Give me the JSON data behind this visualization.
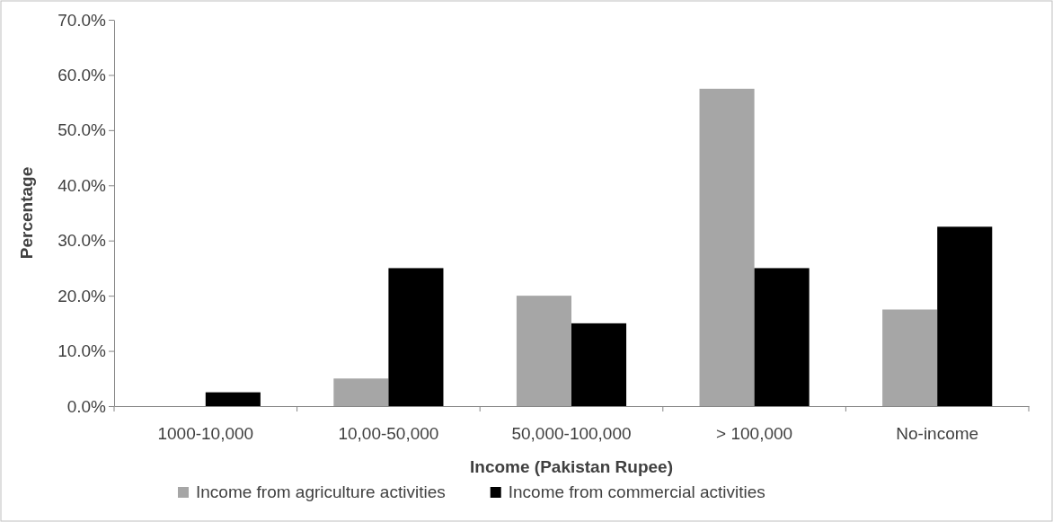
{
  "chart_data": {
    "type": "bar",
    "xlabel": "Income (Pakistan Rupee)",
    "ylabel": "Percentage",
    "categories": [
      "1000-10,000",
      "10,00-50,000",
      "50,000-100,000",
      "> 100,000",
      "No-income"
    ],
    "series": [
      {
        "name": "Income from agriculture activities",
        "color": "#a6a6a6",
        "values": [
          0,
          5,
          20,
          57.5,
          17.5
        ]
      },
      {
        "name": "Income from commercial activities",
        "color": "#000000",
        "values": [
          2.5,
          25,
          15,
          25,
          32.5
        ]
      }
    ],
    "ylim": [
      0,
      70
    ],
    "yticks": [
      {
        "value": 0,
        "label": "0.0%"
      },
      {
        "value": 10,
        "label": "10.0%"
      },
      {
        "value": 20,
        "label": "20.0%"
      },
      {
        "value": 30,
        "label": "30.0%"
      },
      {
        "value": 40,
        "label": "40.0%"
      },
      {
        "value": 50,
        "label": "50.0%"
      },
      {
        "value": 60,
        "label": "60.0%"
      },
      {
        "value": 70,
        "label": "70.0%"
      }
    ],
    "grid": false,
    "legend": "bottom"
  }
}
